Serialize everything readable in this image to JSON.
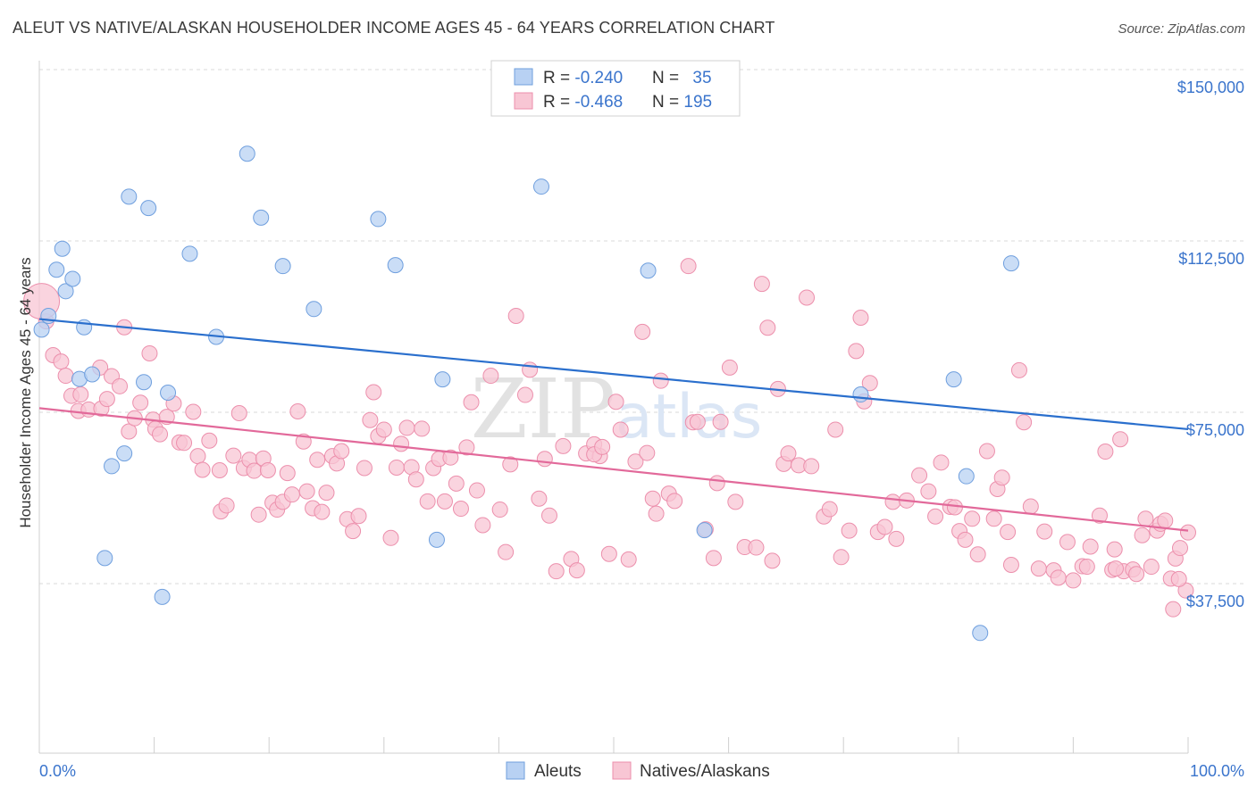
{
  "title": "ALEUT VS NATIVE/ALASKAN HOUSEHOLDER INCOME AGES 45 - 64 YEARS CORRELATION CHART",
  "source": "Source: ZipAtlas.com",
  "watermark": "ZIPatlas",
  "colors": {
    "aleut_fill": "#b8d1f3",
    "aleut_stroke": "#6f9fde",
    "aleut_line": "#2a6fcd",
    "native_fill": "#f8c6d4",
    "native_stroke": "#ec8fac",
    "native_line": "#e2699a",
    "axis_label": "#3a74cc",
    "grid": "#d9d9d9"
  },
  "legend_top": [
    {
      "r_label": "R = ",
      "r_value": "-0.240",
      "n_label": "N = ",
      "n_value": "35"
    },
    {
      "r_label": "R = ",
      "r_value": "-0.468",
      "n_label": "N = ",
      "n_value": "195"
    }
  ],
  "legend_bottom": [
    "Aleuts",
    "Natives/Alaskans"
  ],
  "chart_data": {
    "type": "scatter",
    "title": "ALEUT VS NATIVE/ALASKAN HOUSEHOLDER INCOME AGES 45 - 64 YEARS CORRELATION CHART",
    "xlabel": "",
    "ylabel": "Householder Income Ages 45 - 64 years",
    "x_tick_labels": [
      "0.0%",
      "100.0%"
    ],
    "y_ticks": [
      37500,
      75000,
      112500,
      150000
    ],
    "y_tick_labels": [
      "$37,500",
      "$75,000",
      "$112,500",
      "$150,000"
    ],
    "xlim": [
      0,
      100
    ],
    "ylim": [
      0,
      154000
    ],
    "grid": true,
    "legend_position": "top-center",
    "series": [
      {
        "name": "Aleuts",
        "R": -0.24,
        "N": 35,
        "trend": {
          "x": [
            0,
            100
          ],
          "y": [
            95400,
            71300
          ]
        },
        "points": [
          [
            0.2,
            93100
          ],
          [
            0.8,
            96100
          ],
          [
            1.5,
            106200
          ],
          [
            2.0,
            110800
          ],
          [
            2.3,
            101500
          ],
          [
            2.9,
            104200
          ],
          [
            3.5,
            82300
          ],
          [
            3.9,
            93600
          ],
          [
            4.6,
            83300
          ],
          [
            5.7,
            43100
          ],
          [
            6.3,
            63200
          ],
          [
            7.4,
            66000
          ],
          [
            7.8,
            122200
          ],
          [
            9.1,
            81600
          ],
          [
            9.5,
            119700
          ],
          [
            10.7,
            34600
          ],
          [
            11.2,
            79300
          ],
          [
            13.1,
            109700
          ],
          [
            15.4,
            91500
          ],
          [
            18.1,
            131600
          ],
          [
            19.3,
            117600
          ],
          [
            21.2,
            107000
          ],
          [
            23.9,
            97600
          ],
          [
            29.5,
            117300
          ],
          [
            31.0,
            107200
          ],
          [
            35.1,
            82200
          ],
          [
            34.6,
            47100
          ],
          [
            43.7,
            124400
          ],
          [
            53.0,
            106000
          ],
          [
            57.9,
            49200
          ],
          [
            71.5,
            78900
          ],
          [
            79.6,
            82200
          ],
          [
            80.7,
            61000
          ],
          [
            81.9,
            26700
          ],
          [
            84.6,
            107600
          ]
        ]
      },
      {
        "name": "Natives/Alaskans",
        "R": -0.468,
        "N": 195,
        "trend": {
          "x": [
            0,
            100
          ],
          "y": [
            75900,
            49100
          ]
        },
        "points": [
          [
            0.6,
            94900
          ],
          [
            1.2,
            87500
          ],
          [
            1.9,
            86100
          ],
          [
            2.3,
            83000
          ],
          [
            2.8,
            78600
          ],
          [
            3.4,
            75300
          ],
          [
            3.6,
            78900
          ],
          [
            4.3,
            75600
          ],
          [
            5.3,
            84800
          ],
          [
            5.4,
            75800
          ],
          [
            5.9,
            77900
          ],
          [
            6.3,
            82900
          ],
          [
            7.0,
            80700
          ],
          [
            7.4,
            93600
          ],
          [
            7.8,
            70800
          ],
          [
            8.3,
            73700
          ],
          [
            8.8,
            77100
          ],
          [
            9.6,
            87900
          ],
          [
            9.9,
            73400
          ],
          [
            10.1,
            71400
          ],
          [
            10.5,
            70200
          ],
          [
            11.1,
            74000
          ],
          [
            11.7,
            76900
          ],
          [
            12.2,
            68400
          ],
          [
            12.6,
            68300
          ],
          [
            13.4,
            75100
          ],
          [
            13.8,
            65400
          ],
          [
            14.2,
            62400
          ],
          [
            14.8,
            68800
          ],
          [
            15.7,
            62300
          ],
          [
            15.8,
            53300
          ],
          [
            16.3,
            54600
          ],
          [
            16.9,
            65500
          ],
          [
            17.4,
            74800
          ],
          [
            17.8,
            62800
          ],
          [
            18.3,
            64600
          ],
          [
            18.7,
            62200
          ],
          [
            19.1,
            52600
          ],
          [
            19.5,
            64900
          ],
          [
            19.9,
            62300
          ],
          [
            20.3,
            55200
          ],
          [
            20.7,
            53700
          ],
          [
            21.2,
            55400
          ],
          [
            21.6,
            61700
          ],
          [
            22.0,
            57000
          ],
          [
            22.5,
            75200
          ],
          [
            23.0,
            68600
          ],
          [
            23.3,
            57700
          ],
          [
            23.8,
            54000
          ],
          [
            24.2,
            64600
          ],
          [
            24.6,
            53200
          ],
          [
            25.0,
            57400
          ],
          [
            25.5,
            65400
          ],
          [
            25.9,
            63800
          ],
          [
            26.3,
            66500
          ],
          [
            26.8,
            51600
          ],
          [
            27.3,
            49000
          ],
          [
            27.8,
            52300
          ],
          [
            28.3,
            62800
          ],
          [
            28.8,
            73300
          ],
          [
            29.1,
            79400
          ],
          [
            29.5,
            69800
          ],
          [
            30.0,
            71200
          ],
          [
            30.6,
            47500
          ],
          [
            31.1,
            62900
          ],
          [
            31.5,
            68100
          ],
          [
            32.0,
            71600
          ],
          [
            32.4,
            63000
          ],
          [
            32.8,
            60300
          ],
          [
            33.3,
            71400
          ],
          [
            33.8,
            55500
          ],
          [
            34.3,
            62800
          ],
          [
            34.8,
            64800
          ],
          [
            35.3,
            55500
          ],
          [
            35.8,
            65100
          ],
          [
            36.3,
            59400
          ],
          [
            36.7,
            53900
          ],
          [
            37.2,
            67300
          ],
          [
            37.6,
            77200
          ],
          [
            38.1,
            57900
          ],
          [
            38.6,
            50300
          ],
          [
            39.3,
            83000
          ],
          [
            40.1,
            53700
          ],
          [
            40.6,
            44400
          ],
          [
            41.0,
            63600
          ],
          [
            41.5,
            96100
          ],
          [
            42.3,
            78800
          ],
          [
            42.7,
            84300
          ],
          [
            43.5,
            56100
          ],
          [
            44.0,
            64800
          ],
          [
            44.4,
            52400
          ],
          [
            45.0,
            40200
          ],
          [
            45.6,
            67600
          ],
          [
            46.3,
            42900
          ],
          [
            46.8,
            40400
          ],
          [
            47.6,
            66000
          ],
          [
            48.3,
            68000
          ],
          [
            48.8,
            65400
          ],
          [
            48.3,
            65800
          ],
          [
            49.0,
            67400
          ],
          [
            49.6,
            44000
          ],
          [
            50.2,
            77300
          ],
          [
            50.6,
            71200
          ],
          [
            51.3,
            42800
          ],
          [
            51.9,
            64200
          ],
          [
            52.5,
            92600
          ],
          [
            52.9,
            66100
          ],
          [
            53.4,
            56100
          ],
          [
            53.7,
            52800
          ],
          [
            54.1,
            81900
          ],
          [
            54.8,
            57200
          ],
          [
            55.3,
            55600
          ],
          [
            56.5,
            107000
          ],
          [
            56.9,
            72800
          ],
          [
            57.3,
            72900
          ],
          [
            58.0,
            49400
          ],
          [
            58.7,
            43100
          ],
          [
            59.0,
            59500
          ],
          [
            59.3,
            72900
          ],
          [
            60.1,
            84800
          ],
          [
            60.6,
            55400
          ],
          [
            61.4,
            45500
          ],
          [
            62.4,
            45400
          ],
          [
            62.9,
            103100
          ],
          [
            63.4,
            93500
          ],
          [
            63.8,
            42500
          ],
          [
            64.3,
            80100
          ],
          [
            64.8,
            63700
          ],
          [
            65.2,
            66000
          ],
          [
            66.1,
            63400
          ],
          [
            66.8,
            100100
          ],
          [
            67.2,
            63200
          ],
          [
            68.3,
            52200
          ],
          [
            68.8,
            53800
          ],
          [
            69.3,
            71200
          ],
          [
            69.8,
            43300
          ],
          [
            70.5,
            49100
          ],
          [
            71.1,
            88400
          ],
          [
            71.5,
            95700
          ],
          [
            71.8,
            77400
          ],
          [
            72.3,
            81400
          ],
          [
            73.0,
            48800
          ],
          [
            73.6,
            49900
          ],
          [
            74.3,
            55400
          ],
          [
            74.6,
            47300
          ],
          [
            75.5,
            55700
          ],
          [
            76.6,
            61200
          ],
          [
            77.4,
            57700
          ],
          [
            78.0,
            52200
          ],
          [
            78.5,
            64000
          ],
          [
            79.3,
            54300
          ],
          [
            79.7,
            54200
          ],
          [
            80.1,
            49000
          ],
          [
            80.6,
            47100
          ],
          [
            81.2,
            51700
          ],
          [
            81.7,
            43900
          ],
          [
            82.5,
            66500
          ],
          [
            83.1,
            51700
          ],
          [
            83.4,
            58200
          ],
          [
            83.8,
            60700
          ],
          [
            84.3,
            48800
          ],
          [
            84.6,
            41600
          ],
          [
            85.3,
            84200
          ],
          [
            85.7,
            72800
          ],
          [
            86.3,
            54400
          ],
          [
            87.0,
            40800
          ],
          [
            87.5,
            48900
          ],
          [
            88.3,
            40400
          ],
          [
            88.7,
            38800
          ],
          [
            89.5,
            46600
          ],
          [
            90.0,
            38200
          ],
          [
            90.8,
            41300
          ],
          [
            91.2,
            41200
          ],
          [
            91.5,
            45600
          ],
          [
            92.3,
            52400
          ],
          [
            92.8,
            66400
          ],
          [
            93.4,
            40500
          ],
          [
            93.6,
            45000
          ],
          [
            94.1,
            69100
          ],
          [
            94.4,
            40200
          ],
          [
            95.2,
            40600
          ],
          [
            95.5,
            39600
          ],
          [
            96.0,
            48100
          ],
          [
            96.3,
            51700
          ],
          [
            96.8,
            41200
          ],
          [
            97.3,
            49100
          ],
          [
            97.6,
            50600
          ],
          [
            98.0,
            51300
          ],
          [
            98.5,
            38600
          ],
          [
            98.9,
            43000
          ],
          [
            99.3,
            45300
          ],
          [
            99.8,
            36000
          ],
          [
            100.0,
            48700
          ],
          [
            98.7,
            31900
          ],
          [
            99.2,
            38500
          ],
          [
            93.7,
            40800
          ]
        ]
      }
    ]
  }
}
